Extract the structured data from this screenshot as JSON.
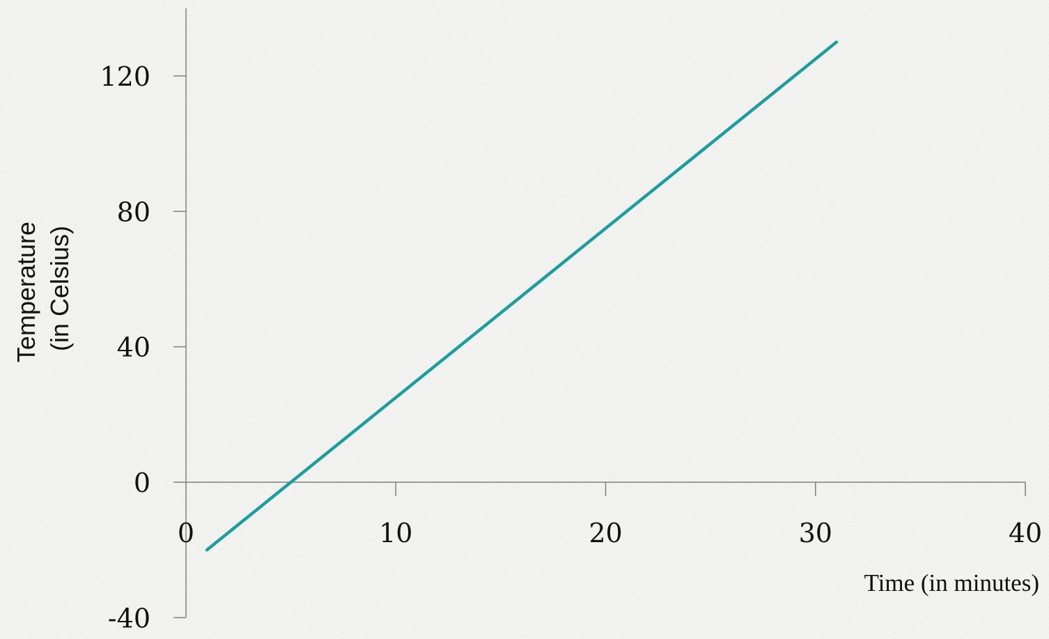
{
  "chart_data": {
    "type": "line",
    "xlabel": "Time (in minutes)",
    "ylabel_lines": [
      "Temperature",
      "(in Celsius)"
    ],
    "xlim": [
      0,
      40
    ],
    "ylim": [
      -40,
      140
    ],
    "xticks": [
      0,
      10,
      20,
      30,
      40
    ],
    "xtick_labels": [
      "0",
      "10",
      "20",
      "30",
      "40"
    ],
    "yticks": [
      -40,
      0,
      40,
      80,
      120
    ],
    "ytick_labels": [
      "-40",
      "0",
      "40",
      "80",
      "120"
    ],
    "grid": false,
    "legend": "none",
    "series": [
      {
        "color": "#1a9e9e",
        "x": [
          1,
          31
        ],
        "y": [
          -20,
          130
        ]
      }
    ]
  }
}
